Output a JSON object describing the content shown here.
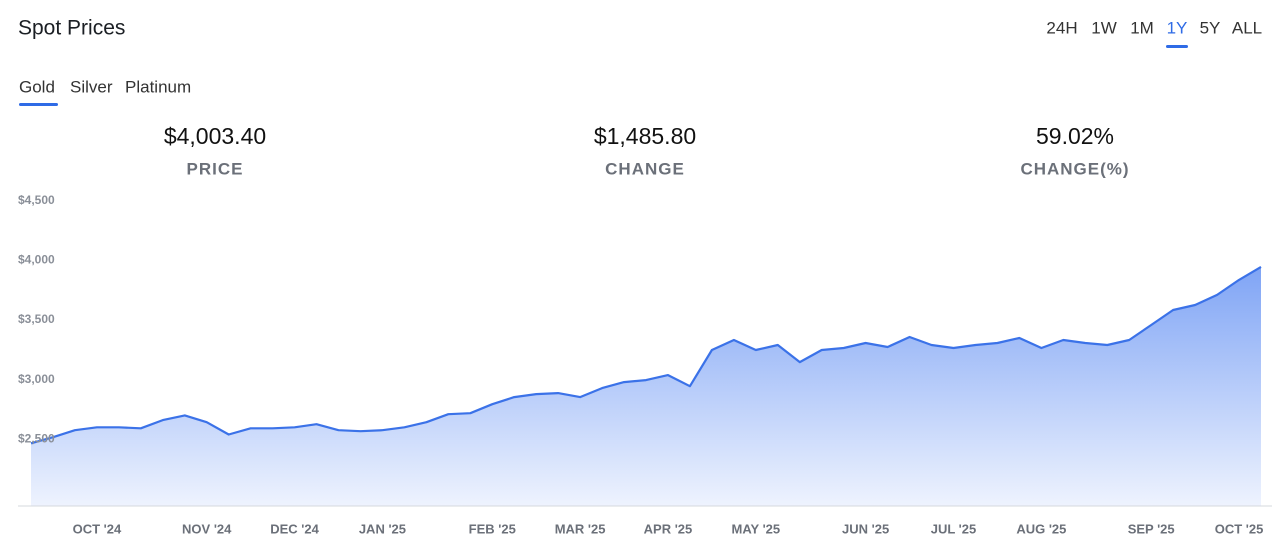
{
  "header": {
    "title": "Spot Prices",
    "ranges": [
      "24H",
      "1W",
      "1M",
      "1Y",
      "5Y",
      "ALL"
    ],
    "active_range": 3
  },
  "metals": {
    "tabs": [
      "Gold",
      "Silver",
      "Platinum"
    ],
    "active": 0
  },
  "stats": [
    {
      "value": "$4,003.40",
      "label": "PRICE"
    },
    {
      "value": "$1,485.80",
      "label": "CHANGE"
    },
    {
      "value": "59.02%",
      "label": "CHANGE(%)"
    }
  ],
  "chart_data": {
    "type": "area",
    "color": "#3b72e8",
    "categories": [
      null,
      null,
      null,
      "OCT '24",
      null,
      null,
      null,
      null,
      "NOV '24",
      null,
      null,
      null,
      "DEC '24",
      null,
      null,
      null,
      "JAN '25",
      null,
      null,
      null,
      null,
      "FEB '25",
      null,
      null,
      null,
      "MAR '25",
      null,
      null,
      null,
      "APR '25",
      null,
      null,
      null,
      "MAY '25",
      null,
      null,
      null,
      null,
      "JUN '25",
      null,
      null,
      null,
      "JUL '25",
      null,
      null,
      null,
      "AUG '25",
      null,
      null,
      null,
      null,
      "SEP '25",
      null,
      null,
      null,
      "OCT '25",
      null
    ],
    "values": [
      2466,
      2517,
      2576,
      2600,
      2600,
      2592,
      2660,
      2700,
      2643,
      2540,
      2592,
      2592,
      2600,
      2626,
      2576,
      2567,
      2576,
      2600,
      2643,
      2710,
      2718,
      2794,
      2853,
      2878,
      2887,
      2853,
      2929,
      2979,
      2996,
      3038,
      2945,
      3248,
      3332,
      3248,
      3290,
      3147,
      3248,
      3265,
      3307,
      3273,
      3357,
      3290,
      3265,
      3290,
      3307,
      3349,
      3265,
      3332,
      3307,
      3290,
      3332,
      3458,
      3584,
      3626,
      3710,
      3836,
      3945
    ],
    "ylim": [
      1940,
      4590
    ],
    "yticks": [
      {
        "value": 2500,
        "label": "$2,500"
      },
      {
        "value": 3000,
        "label": "$3,000"
      },
      {
        "value": 3500,
        "label": "$3,500"
      },
      {
        "value": 4000,
        "label": "$4,000"
      },
      {
        "value": 4500,
        "label": "$4,500"
      }
    ],
    "grid": false
  }
}
